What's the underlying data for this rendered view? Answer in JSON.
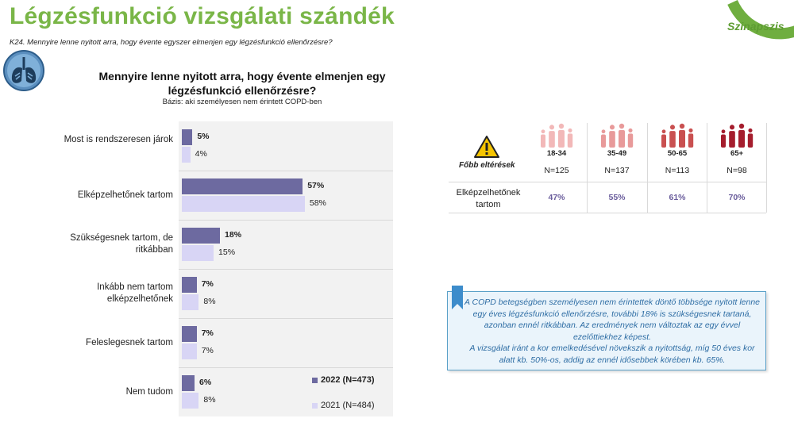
{
  "header": {
    "title": "Légzésfunkció vizsgálati szándék",
    "question": "K24. Mennyire lenne nyitott arra, hogy évente egyszer elmenjen egy légzésfunkció ellenőrzésre?",
    "logo": "Szinapszis"
  },
  "chart_data": {
    "type": "bar",
    "orientation": "horizontal",
    "title": "Mennyire lenne nyitott arra, hogy évente elmenjen egy légzésfunkció ellenőrzésre?",
    "subtitle": "Bázis: aki személyesen nem érintett COPD-ben",
    "categories": [
      "Most is rendszeresen járok",
      "Elképzelhetőnek tartom",
      "Szükségesnek tartom, de ritkábban",
      "Inkább nem tartom elképzelhetőnek",
      "Feleslegesnek tartom",
      "Nem tudom"
    ],
    "series": [
      {
        "name": "2022 (N=473)",
        "color": "#6d6aa0",
        "values": [
          5,
          57,
          18,
          7,
          7,
          6
        ]
      },
      {
        "name": "2021 (N=484)",
        "color": "#d8d5f5",
        "values": [
          4,
          58,
          15,
          8,
          7,
          8
        ]
      }
    ],
    "value_suffix": "%",
    "xlim": [
      0,
      100
    ],
    "legend_position": "bottom-right"
  },
  "table": {
    "corner_label": "Főbb eltérések",
    "age_groups": [
      {
        "label": "18-34",
        "n": "N=125",
        "value": "47%",
        "color": "#f2b8b8"
      },
      {
        "label": "35-49",
        "n": "N=137",
        "value": "55%",
        "color": "#e89a9a"
      },
      {
        "label": "50-65",
        "n": "N=113",
        "value": "61%",
        "color": "#c95050"
      },
      {
        "label": "65+",
        "n": "N=98",
        "value": "70%",
        "color": "#a51d2d"
      }
    ],
    "row_label": "Elképzelhetőnek tartom"
  },
  "note": {
    "p1": "A COPD betegségben személyesen nem érintettek döntő többsége nyitott lenne egy éves légzésfunkció ellenőrzésre, további 18% is szükségesnek tartaná, azonban ennél ritkábban. Az eredmények nem változtak az egy évvel ezelőttiekhez képest.",
    "p2": "A vizsgálat iránt a kor emelkedésével növekszik a nyitottság, míg 50 éves kor alatt kb. 50%-os, addig az ennél idősebbek körében kb. 65%."
  }
}
